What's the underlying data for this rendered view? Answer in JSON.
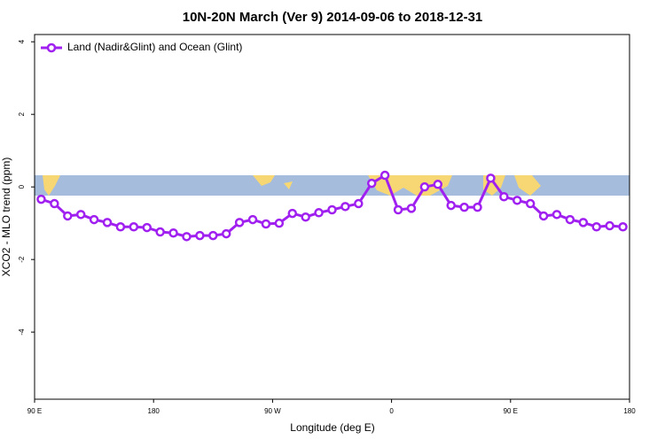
{
  "chart_data": {
    "type": "line",
    "title": "10N-20N March (Ver 9)   2014-09-06 to 2018-12-31",
    "x_label": "Longitude (deg E)",
    "y_label": "XCO2 - MLO trend (ppm)",
    "x": [
      95,
      105,
      115,
      125,
      135,
      145,
      155,
      165,
      175,
      185,
      195,
      205,
      215,
      225,
      235,
      245,
      255,
      265,
      275,
      285,
      295,
      305,
      315,
      325,
      335,
      345,
      355,
      365,
      375,
      385,
      395,
      405,
      415,
      425,
      435,
      445,
      455,
      465,
      475,
      485,
      495,
      505,
      515,
      525,
      535
    ],
    "series": [
      {
        "name": "Land (Nadir&Glint) and Ocean (Glint)",
        "color": "#a020f0",
        "values": [
          -0.34,
          -0.46,
          -0.8,
          -0.76,
          -0.9,
          -0.98,
          -1.1,
          -1.1,
          -1.12,
          -1.24,
          -1.27,
          -1.37,
          -1.34,
          -1.34,
          -1.29,
          -0.98,
          -0.9,
          -1.02,
          -1.0,
          -0.73,
          -0.83,
          -0.71,
          -0.63,
          -0.54,
          -0.46,
          0.1,
          0.32,
          -0.63,
          -0.59,
          0.0,
          0.07,
          -0.51,
          -0.56,
          -0.56,
          0.24,
          -0.27,
          -0.37,
          -0.46,
          -0.8,
          -0.76,
          -0.9,
          -0.98,
          -1.1,
          -1.07,
          -1.1
        ]
      }
    ],
    "xlim": [
      90,
      540
    ],
    "xticks": [
      {
        "value": 90,
        "label": "90 E"
      },
      180,
      {
        "value": 270,
        "label": "90 W"
      },
      {
        "value": 360,
        "label": "0"
      },
      {
        "value": 450,
        "label": "90 E"
      },
      {
        "value": 540,
        "label": "180"
      }
    ],
    "ylim": [
      -5.85,
      4.2
    ],
    "yticks": [
      -4,
      -2,
      0,
      2,
      4
    ],
    "legend": "top-left"
  }
}
